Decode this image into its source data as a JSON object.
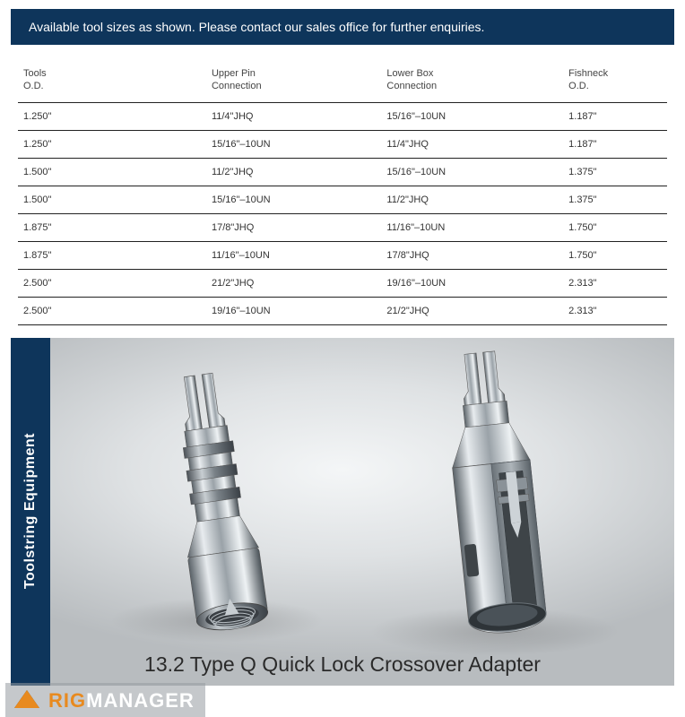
{
  "banner": {
    "text": "Available tool sizes as shown. Please contact our sales office for further enquiries.",
    "bg_color": "#0e355b",
    "text_color": "#ffffff"
  },
  "table": {
    "columns": [
      {
        "line1": "Tools",
        "line2": "O.D.",
        "width": "29%"
      },
      {
        "line1": "Upper Pin",
        "line2": "Connection",
        "width": "27%"
      },
      {
        "line1": "Lower Box",
        "line2": "Connection",
        "width": "28%"
      },
      {
        "line1": "Fishneck",
        "line2": "O.D.",
        "width": "16%"
      }
    ],
    "rows": [
      [
        "1.250\"",
        "11/4\"JHQ",
        "15/16\"–10UN",
        "1.187\""
      ],
      [
        "1.250\"",
        "15/16\"–10UN",
        "11/4\"JHQ",
        "1.187\""
      ],
      [
        "1.500\"",
        "11/2\"JHQ",
        "15/16\"–10UN",
        "1.375\""
      ],
      [
        "1.500\"",
        "15/16\"–10UN",
        "11/2\"JHQ",
        "1.375\""
      ],
      [
        "1.875\"",
        "17/8\"JHQ",
        "11/16\"–10UN",
        "1.750\""
      ],
      [
        "1.875\"",
        "11/16\"–10UN",
        "17/8\"JHQ",
        "1.750\""
      ],
      [
        "2.500\"",
        "21/2\"JHQ",
        "19/16\"–10UN",
        "2.313\""
      ],
      [
        "2.500\"",
        "19/16\"–10UN",
        "21/2\"JHQ",
        "2.313\""
      ]
    ],
    "border_color": "#222222",
    "font_size": 11
  },
  "product": {
    "side_label": "Toolstring Equipment",
    "side_bg": "#0e355b",
    "side_text_color": "#ffffff",
    "caption": "13.2 Type Q Quick Lock Crossover Adapter",
    "bg_gradient_inner": "#f4f6f7",
    "bg_gradient_outer": "#b8bcbf",
    "metal_light": "#e8ecef",
    "metal_mid": "#9aa2a8",
    "metal_dark": "#5a6268"
  },
  "watermark": {
    "icon_color": "#e88a1f",
    "part1": "RIG",
    "part1_color": "#e88a1f",
    "part2": "MANAGER",
    "part2_color": "#ffffff"
  }
}
